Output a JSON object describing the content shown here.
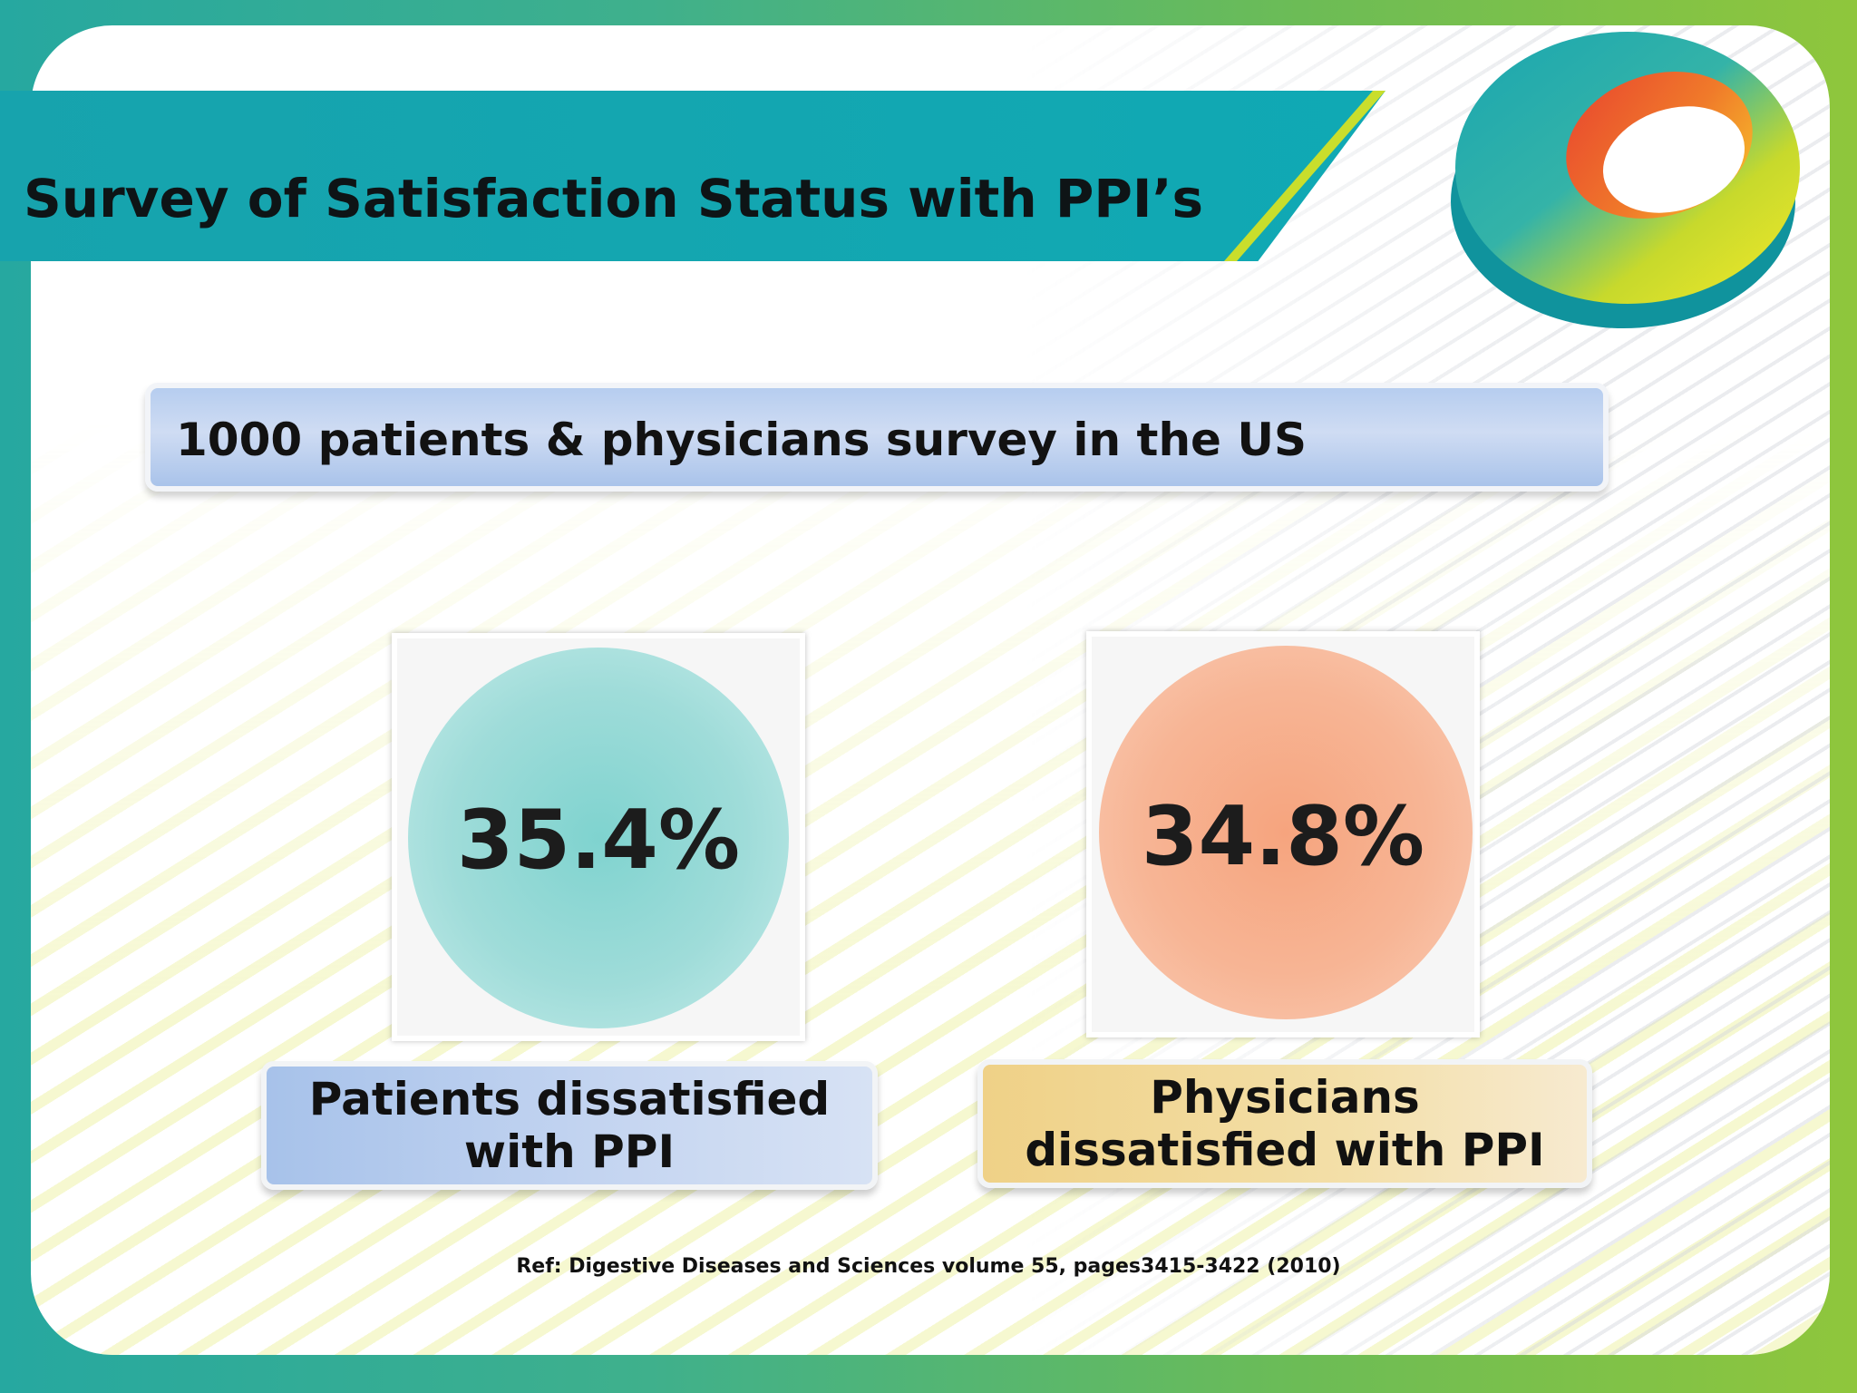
{
  "slide": {
    "title": "Survey of Satisfaction Status with PPI’s",
    "survey_banner": "1000 patients & physicians survey in the US",
    "stats": [
      {
        "value": "35.4%",
        "label_line1": "Patients dissatisfied",
        "label_line2": "with PPI",
        "color": "#8fd6d3"
      },
      {
        "value": "34.8%",
        "label_line1": "Physicians",
        "label_line2": "dissatisfied with PPI",
        "color": "#f7b08c"
      }
    ],
    "reference": "Ref: Digestive Diseases and Sciences volume 55, pages3415-3422 (2010)"
  },
  "colors": {
    "title_bar": "#17a3ad",
    "patients_label": "#a9c3ea",
    "physicians_label": "#f0d489"
  }
}
